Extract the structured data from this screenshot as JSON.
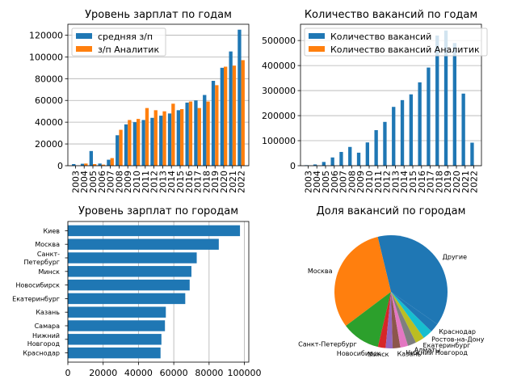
{
  "chart_data": [
    {
      "type": "bar",
      "title": "Уровень зарплат по годам",
      "categories": [
        "2003",
        "2004",
        "2005",
        "2006",
        "2007",
        "2008",
        "2009",
        "2010",
        "2011",
        "2012",
        "2013",
        "2014",
        "2015",
        "2016",
        "2017",
        "2018",
        "2019",
        "2020",
        "2021",
        "2022"
      ],
      "series": [
        {
          "name": "средняя з/п",
          "color": "#1f77b4",
          "values": [
            1500,
            1800,
            13500,
            2000,
            5500,
            28000,
            38000,
            40000,
            42000,
            44000,
            46000,
            48000,
            51000,
            58000,
            60000,
            65000,
            78000,
            90000,
            105000,
            125000
          ]
        },
        {
          "name": "з/п Аналитик",
          "color": "#ff7f0e",
          "values": [
            0,
            2000,
            1500,
            1000,
            7000,
            33000,
            42000,
            43000,
            53000,
            51000,
            50000,
            57000,
            52000,
            59000,
            53000,
            59000,
            74000,
            91000,
            92000,
            97000
          ]
        }
      ],
      "yticks": [
        "0",
        "20000",
        "40000",
        "60000",
        "80000",
        "100000",
        "120000"
      ],
      "ylim": [
        0,
        130000
      ],
      "grid": "y",
      "legend": "top-left"
    },
    {
      "type": "bar",
      "title": "Количество вакансий по годам",
      "categories": [
        "2003",
        "2004",
        "2005",
        "2006",
        "2007",
        "2008",
        "2009",
        "2010",
        "2011",
        "2012",
        "2013",
        "2014",
        "2015",
        "2016",
        "2017",
        "2018",
        "2019",
        "2020",
        "2021",
        "2022"
      ],
      "series": [
        {
          "name": "Количество вакансий",
          "color": "#1f77b4",
          "values": [
            2000,
            5000,
            15000,
            33000,
            55000,
            75000,
            52000,
            93000,
            142000,
            175000,
            235000,
            262000,
            285000,
            333000,
            392000,
            520000,
            540000,
            490000,
            288000,
            92000
          ]
        },
        {
          "name": "Количество вакансий Аналитик",
          "color": "#ff7f0e",
          "values": [
            0,
            0,
            0,
            0,
            100,
            200,
            200,
            300,
            400,
            500,
            600,
            700,
            800,
            900,
            1000,
            1200,
            1400,
            1300,
            800,
            300
          ]
        }
      ],
      "yticks": [
        "0",
        "100000",
        "200000",
        "300000",
        "400000",
        "500000"
      ],
      "ylim": [
        0,
        565000
      ],
      "grid": "y",
      "legend": "top-left"
    },
    {
      "type": "bar",
      "orientation": "horizontal",
      "title": "Уровень зарплат по городам",
      "categories": [
        "Киев",
        "Москва",
        "Санкт-\nПетербург",
        "Минск",
        "Новосибирск",
        "Екатеринбург",
        "Казань",
        "Самара",
        "Нижний\nНовгород",
        "Краснодар"
      ],
      "values": [
        97500,
        85500,
        73000,
        70000,
        69000,
        66500,
        55500,
        55000,
        53000,
        52500
      ],
      "color": "#1f77b4",
      "xticks": [
        "0",
        "20000",
        "40000",
        "60000",
        "80000",
        "100000"
      ],
      "xlim": [
        0,
        102500
      ],
      "grid": "x"
    },
    {
      "type": "pie",
      "title": "Доля вакансий по городам",
      "labels": [
        "Другие",
        "Москва",
        "Санкт-Петербург",
        "Новосибирск",
        "Минск",
        "Казань",
        "Нижний Новгород",
        "Алматы",
        "Екатеринбург",
        "Ростов-на-Дону",
        "Краснодар"
      ],
      "values": [
        38.5,
        31.5,
        11.0,
        2.2,
        2.0,
        2.2,
        2.2,
        2.4,
        2.6,
        2.8,
        2.6
      ],
      "colors": [
        "#1f77b4",
        "#ff7f0e",
        "#2ca02c",
        "#d62728",
        "#9467bd",
        "#8c564b",
        "#e377c2",
        "#7f7f7f",
        "#bcbd22",
        "#17becf",
        "#1f77b4"
      ]
    }
  ]
}
